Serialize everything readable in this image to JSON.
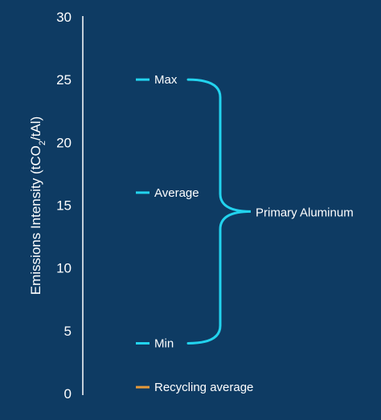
{
  "chart_data": {
    "type": "scatter",
    "ylabel_parts": {
      "before": "Emissions Intensity (tCO",
      "subscript": "2",
      "after": "/tAl)"
    },
    "ylim": [
      0,
      30
    ],
    "yticks": [
      0,
      5,
      10,
      15,
      20,
      25,
      30
    ],
    "grid": false,
    "legend": "none",
    "colors": {
      "background": "#0e3b63",
      "primary": "#22d3ee",
      "recycling": "#e59a3a",
      "text": "#ffffff",
      "axis": "#ffffff"
    },
    "points": [
      {
        "label": "Max",
        "value": 25,
        "group": "primary"
      },
      {
        "label": "Average",
        "value": 16,
        "group": "primary"
      },
      {
        "label": "Min",
        "value": 4,
        "group": "primary"
      },
      {
        "label": "Recycling average",
        "value": 0.5,
        "group": "recycling"
      }
    ],
    "annotations": [
      {
        "text": "Primary Aluminum",
        "range": [
          4,
          25
        ]
      }
    ]
  }
}
